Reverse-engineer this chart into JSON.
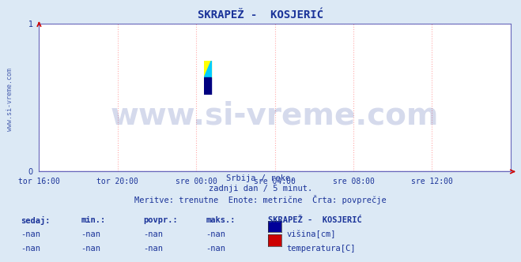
{
  "title": "SKRAPEŽ -  KOSJERIĆ",
  "title_color": "#1a3399",
  "title_fontsize": 10,
  "background_color": "#dce9f5",
  "plot_bg_color": "#ffffff",
  "grid_color": "#ffaaaa",
  "watermark": "www.si-vreme.com",
  "watermark_color": "#1a3399",
  "watermark_alpha": 0.18,
  "watermark_fontsize": 28,
  "subtitle1": "Srbija / reke.",
  "subtitle2": "zadnji dan / 5 minut.",
  "subtitle3": "Meritve: trenutne  Enote: metrične  Črta: povprečje",
  "subtitle_color": "#1a3399",
  "subtitle_fontsize": 7.5,
  "xlabel_color": "#1a3399",
  "xlabels": [
    "tor 16:00",
    "tor 20:00",
    "sre 00:00",
    "sre 04:00",
    "sre 08:00",
    "sre 12:00"
  ],
  "xtick_positions": [
    0.0,
    0.1667,
    0.3333,
    0.5,
    0.6667,
    0.8333
  ],
  "ylim": [
    0,
    1
  ],
  "yticks": [
    0,
    1
  ],
  "xlim": [
    0,
    1
  ],
  "side_text": "www.si-vreme.com",
  "side_text_color": "#1a3399",
  "side_text_fontsize": 6,
  "footer_col_headers": [
    "sedaj:",
    "min.:",
    "povpr.:",
    "maks.:"
  ],
  "footer_col_header_color": "#1a3399",
  "footer_station": "SKRAPEŽ -  KOSJERIĆ",
  "footer_station_color": "#1a3399",
  "footer_rows": [
    [
      "-nan",
      "-nan",
      "-nan",
      "-nan",
      "#000099",
      "višina[cm]"
    ],
    [
      "-nan",
      "-nan",
      "-nan",
      "-nan",
      "#cc0000",
      "temperatura[C]"
    ]
  ],
  "footer_text_color": "#1a3399",
  "footer_fontsize": 7.5,
  "arrow_color": "#cc0000",
  "spine_color": "#6666bb",
  "tick_color": "#cc0000",
  "grid_line_color": "#ffaaaa",
  "hline_color": "#6666bb",
  "logo_colors": {
    "yellow": "#ffff00",
    "cyan": "#00ccff",
    "dark_blue": "#000080"
  }
}
